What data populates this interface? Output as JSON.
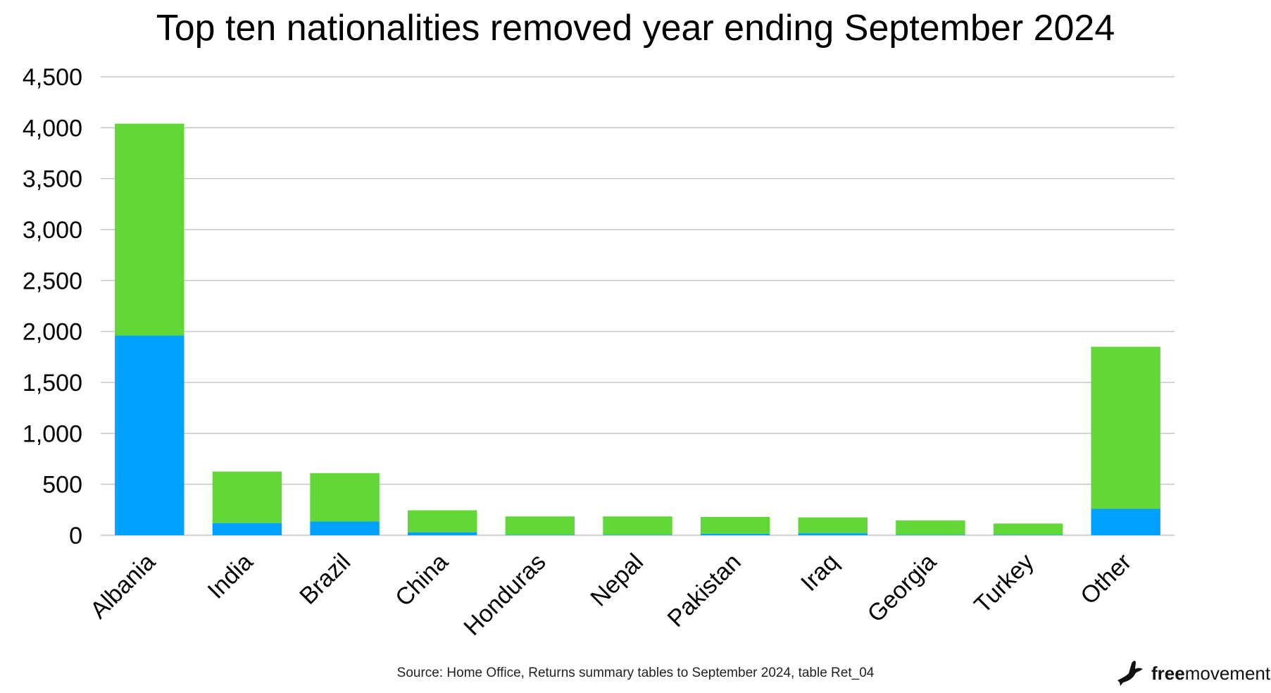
{
  "chart_data": {
    "type": "bar",
    "stacked": true,
    "title": "Top ten nationalities removed year ending September 2024",
    "xlabel": "",
    "ylabel": "",
    "ylim": [
      0,
      4500
    ],
    "yticks": [
      0,
      500,
      1000,
      1500,
      2000,
      2500,
      3000,
      3500,
      4000,
      4500
    ],
    "ytick_labels": [
      "0",
      "500",
      "1,000",
      "1,500",
      "2,000",
      "2,500",
      "3,000",
      "3,500",
      "4,000",
      "4,500"
    ],
    "grid": true,
    "legend": "none",
    "categories": [
      "Albania",
      "India",
      "Brazil",
      "China",
      "Honduras",
      "Nepal",
      "Pakistan",
      "Iraq",
      "Georgia",
      "Turkey",
      "Other"
    ],
    "series": [
      {
        "color": "#00a0ff",
        "values": [
          1960,
          120,
          135,
          30,
          5,
          5,
          15,
          20,
          5,
          5,
          260
        ]
      },
      {
        "color": "#62d838",
        "values": [
          2080,
          505,
          475,
          215,
          180,
          180,
          165,
          155,
          140,
          110,
          1590
        ]
      }
    ]
  },
  "source": "Source: Home Office, Returns summary tables to September 2024, table Ret_04",
  "brand": {
    "bold": "free",
    "regular": "movement",
    "icon": "bird-icon"
  }
}
